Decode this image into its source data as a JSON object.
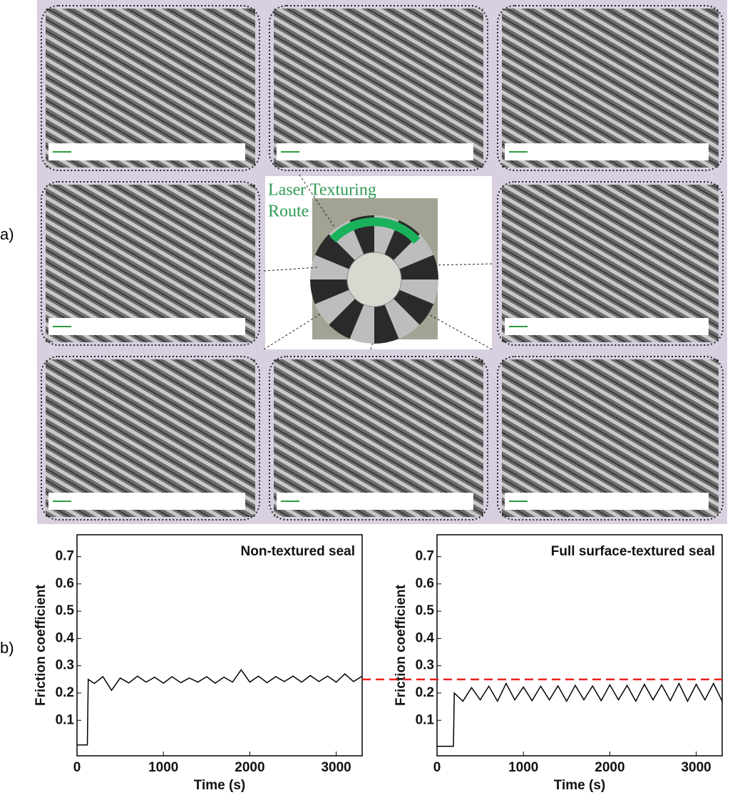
{
  "panel_labels": [
    "a)",
    "b)"
  ],
  "route_label": [
    "Laser  Texturing",
    "Route"
  ],
  "chart_data": [
    {
      "type": "line",
      "annotation": "Non-textured seal",
      "xlabel": "Time (s)",
      "ylabel": "Friction coefficient",
      "xlim": [
        0,
        3300
      ],
      "xticks": [
        0,
        1000,
        2000,
        3000
      ],
      "ylim": [
        -0.03,
        0.78
      ],
      "yticks": [
        0.1,
        0.2,
        0.3,
        0.4,
        0.5,
        0.6,
        0.7
      ],
      "series": [
        {
          "color": "#000000",
          "x": [
            0,
            120,
            130,
            200,
            300,
            400,
            500,
            600,
            700,
            800,
            900,
            1000,
            1100,
            1200,
            1300,
            1400,
            1500,
            1600,
            1700,
            1800,
            1900,
            2000,
            2100,
            2200,
            2300,
            2400,
            2500,
            2600,
            2700,
            2800,
            2900,
            3000,
            3100,
            3200,
            3300
          ],
          "values": [
            0.01,
            0.01,
            0.25,
            0.235,
            0.26,
            0.21,
            0.255,
            0.237,
            0.262,
            0.24,
            0.258,
            0.236,
            0.26,
            0.238,
            0.255,
            0.24,
            0.26,
            0.236,
            0.258,
            0.24,
            0.285,
            0.24,
            0.262,
            0.238,
            0.26,
            0.242,
            0.262,
            0.24,
            0.264,
            0.242,
            0.262,
            0.24,
            0.27,
            0.242,
            0.262
          ]
        }
      ]
    },
    {
      "type": "line",
      "annotation": "Full surface-textured seal",
      "xlabel": "Time (s)",
      "ylabel": "Friction coefficient",
      "xlim": [
        0,
        3300
      ],
      "xticks": [
        0,
        1000,
        2000,
        3000
      ],
      "ylim": [
        -0.03,
        0.78
      ],
      "yticks": [
        0.1,
        0.2,
        0.3,
        0.4,
        0.5,
        0.6,
        0.7
      ],
      "reference_line": {
        "value": 0.25,
        "color": "#e8231f"
      },
      "series": [
        {
          "color": "#000000",
          "x": [
            0,
            190,
            200,
            300,
            400,
            500,
            600,
            700,
            800,
            900,
            1000,
            1100,
            1200,
            1300,
            1400,
            1500,
            1600,
            1700,
            1800,
            1900,
            2000,
            2100,
            2200,
            2300,
            2400,
            2500,
            2600,
            2700,
            2800,
            2900,
            3000,
            3100,
            3200,
            3300
          ],
          "values": [
            0.005,
            0.005,
            0.2,
            0.17,
            0.22,
            0.175,
            0.225,
            0.17,
            0.235,
            0.175,
            0.222,
            0.172,
            0.225,
            0.175,
            0.226,
            0.17,
            0.228,
            0.175,
            0.226,
            0.172,
            0.23,
            0.175,
            0.228,
            0.17,
            0.232,
            0.175,
            0.23,
            0.172,
            0.235,
            0.17,
            0.232,
            0.175,
            0.235,
            0.17
          ]
        }
      ]
    }
  ]
}
